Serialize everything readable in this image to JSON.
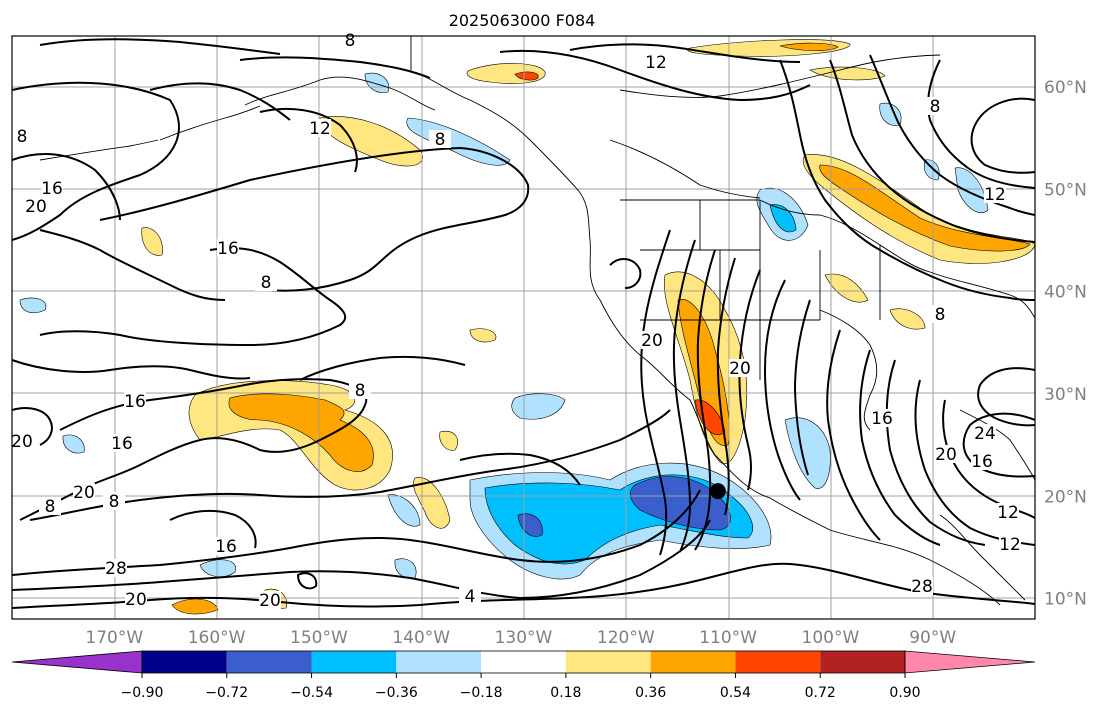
{
  "title": "2025063000 F084",
  "map": {
    "lon_range": [
      -180,
      -80
    ],
    "lat_range": [
      8,
      65
    ],
    "lat_labels": [
      "10°N",
      "20°N",
      "30°N",
      "40°N",
      "50°N",
      "60°N"
    ],
    "lon_labels": [
      "170°W",
      "160°W",
      "150°W",
      "140°W",
      "130°W",
      "120°W",
      "110°W",
      "100°W",
      "90°W"
    ],
    "contour_labels": [
      "8",
      "12",
      "8",
      "12",
      "8",
      "16",
      "20",
      "16",
      "8",
      "20",
      "20",
      "16",
      "20",
      "16",
      "20",
      "8",
      "8",
      "16",
      "28",
      "20",
      "20",
      "4",
      "8",
      "16",
      "24",
      "20",
      "16",
      "12",
      "28",
      "12",
      "8",
      "8",
      "12"
    ],
    "marker": {
      "lon": -111,
      "lat": 20.5,
      "color": "#000000"
    }
  },
  "colorbar": {
    "ticks": [
      "−0.90",
      "−0.72",
      "−0.54",
      "−0.36",
      "−0.18",
      "0.18",
      "0.36",
      "0.54",
      "0.72",
      "0.90"
    ],
    "colors": [
      "#9932cc",
      "#00008b",
      "#3a5fcd",
      "#00bfff",
      "#b0e2ff",
      "#ffffff",
      "#ffe680",
      "#ffa500",
      "#ff4500",
      "#b22222",
      "#ff88aa"
    ]
  }
}
